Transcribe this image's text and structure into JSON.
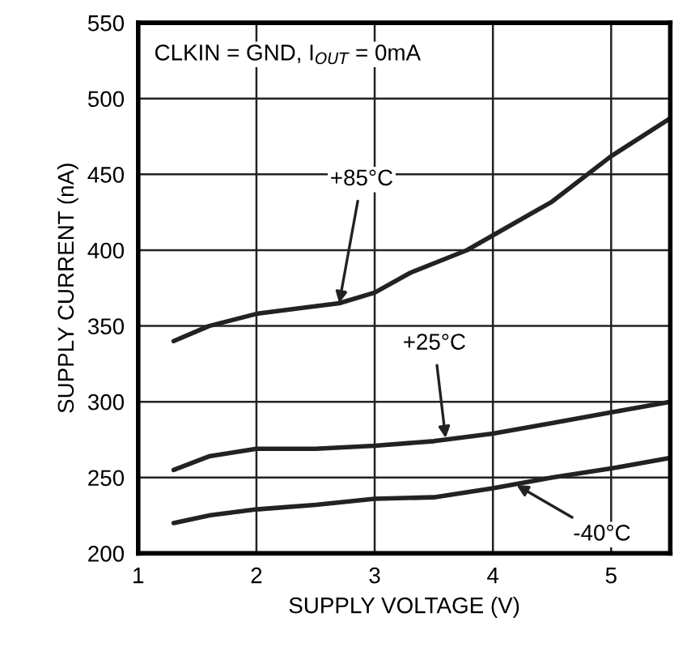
{
  "chart_data": {
    "type": "line",
    "xlabel": "SUPPLY VOLTAGE (V)",
    "ylabel": "SUPPLY CURRENT (nA)",
    "xlim": [
      1,
      5.5
    ],
    "xticks": [
      1,
      2,
      3,
      4,
      5
    ],
    "ylim": [
      200,
      550
    ],
    "yticks": [
      200,
      250,
      300,
      350,
      400,
      450,
      500,
      550
    ],
    "grid": true,
    "line_style": "solid",
    "series": [
      {
        "color": "#222222",
        "x": [
          1.3,
          1.6,
          2,
          2.4,
          2.7,
          3,
          3.3,
          3.78,
          4.5,
          5,
          5.5
        ],
        "values": [
          340,
          350,
          358,
          362,
          365,
          372,
          385,
          400,
          432,
          462,
          487
        ]
      },
      {
        "color": "#222222",
        "x": [
          1.3,
          1.6,
          2,
          2.5,
          3,
          3.5,
          4,
          4.5,
          5,
          5.5
        ],
        "values": [
          255,
          264,
          269,
          269,
          271,
          274,
          279,
          286,
          293,
          300
        ]
      },
      {
        "color": "#222222",
        "x": [
          1.3,
          1.6,
          2,
          2.5,
          3,
          3.5,
          4,
          4.5,
          5,
          5.5
        ],
        "values": [
          220,
          225,
          229,
          232,
          236,
          237,
          243,
          250,
          256,
          263
        ]
      }
    ],
    "annotations": [
      "CLKIN = GND, I$_{OUT}$ = 0mA",
      {
        "text": "+85°C",
        "x": 2.7,
        "y": 365
      },
      {
        "text": "+25°C",
        "x": 3.6,
        "y": 276
      },
      {
        "text": "-40°C",
        "x": 4.2,
        "y": 245
      }
    ]
  }
}
